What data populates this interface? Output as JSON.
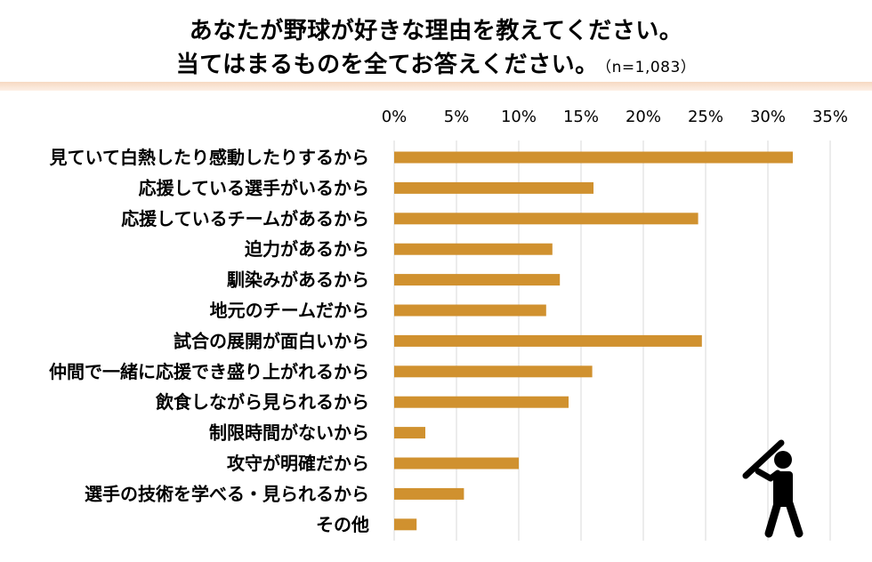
{
  "chart_data": {
    "type": "bar",
    "orientation": "horizontal",
    "title": "あなたが野球が好きな理由を教えてください。",
    "title_line2": "当てはまるものを全てお答えください。",
    "subtitle": "（n=1,083）",
    "categories": [
      "見ていて白熱したり感動したりするから",
      "応援している選手がいるから",
      "応援しているチームがあるから",
      "迫力があるから",
      "馴染みがあるから",
      "地元のチームだから",
      "試合の展開が面白いから",
      "仲間で一緒に応援でき盛り上がれるから",
      "飲食しながら見られるから",
      "制限時間がないから",
      "攻守が明確だから",
      "選手の技術を学べる・見られるから",
      "その他"
    ],
    "values": [
      32.0,
      16.0,
      24.4,
      12.7,
      13.3,
      12.2,
      24.7,
      15.9,
      14.0,
      2.5,
      10.0,
      5.6,
      1.8
    ],
    "xlim": [
      0,
      35
    ],
    "xticks": [
      "0%",
      "5%",
      "10%",
      "15%",
      "20%",
      "25%",
      "30%",
      "35%"
    ],
    "grid": true,
    "bar_color": "#d0912f",
    "grid_color": "#d9d9d9"
  },
  "decoration": {
    "icon": "baseball-batter-icon"
  }
}
